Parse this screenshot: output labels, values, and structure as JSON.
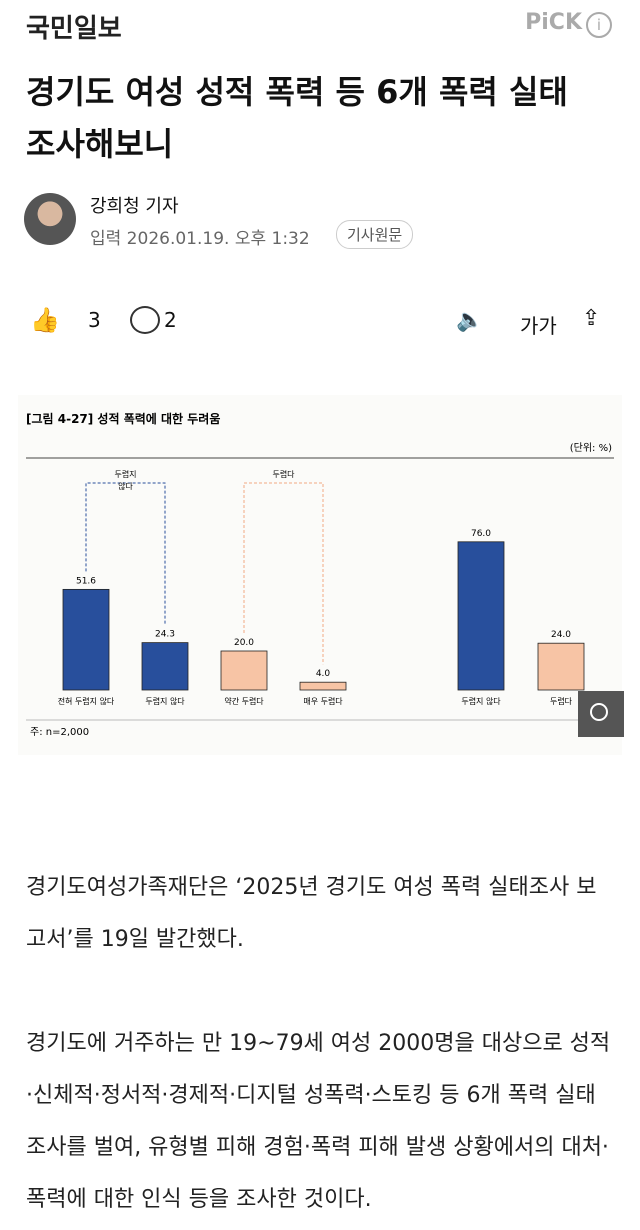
{
  "header": {
    "logo": "국민일보",
    "pick": "PiCK"
  },
  "article": {
    "title": "경기도 여성 성적 폭력 등 6개 폭력 실태 조사해보니",
    "reporter": "강희청 기자",
    "date": "입력 2026.01.19. 오후 1:32",
    "source_button": "기사원문",
    "likes": 3,
    "comments": 2,
    "font_button": "가가",
    "paragraphs": [
      "경기도여성가족재단은 ‘2025년 경기도 여성 폭력 실태조사 보고서’를 19일 발간했다.",
      "경기도에 거주하는 만 19~79세 여성 2000명을 대상으로 성적·신체적·정서적·경제적·디지털 성폭력·스토킹 등 6개 폭력 실태 조사를 벌여, 유형별 피해 경험·폭력 피해 발생 상황에서의 대처·폭력에 대한 인식 등을 조사한 것이다."
    ]
  },
  "chart_data": {
    "type": "bar",
    "title": "[그림 4-27] 성적 폭력에 대한 두려움",
    "unit": "(단위: %)",
    "note": "주: n=2,000",
    "categories": [
      "전혀 두렵지 않다",
      "두렵지 않다",
      "약간 두렵다",
      "매우 두렵다",
      "두렵지 않다",
      "두렵다"
    ],
    "values": [
      51.6,
      24.3,
      20.0,
      4.0,
      76.0,
      24.0
    ],
    "value_labels": [
      "51.6",
      "24.3",
      "20.0",
      "4.0",
      "76.0",
      "24.0"
    ],
    "colors": [
      "#284f9c",
      "#284f9c",
      "#f7c4a5",
      "#f7c4a5",
      "#284f9c",
      "#f7c4a5"
    ],
    "groups": [
      {
        "label": "두렵지 않다",
        "color": "#284f9c"
      },
      {
        "label": "두렵다",
        "color": "#f0a882"
      }
    ]
  }
}
